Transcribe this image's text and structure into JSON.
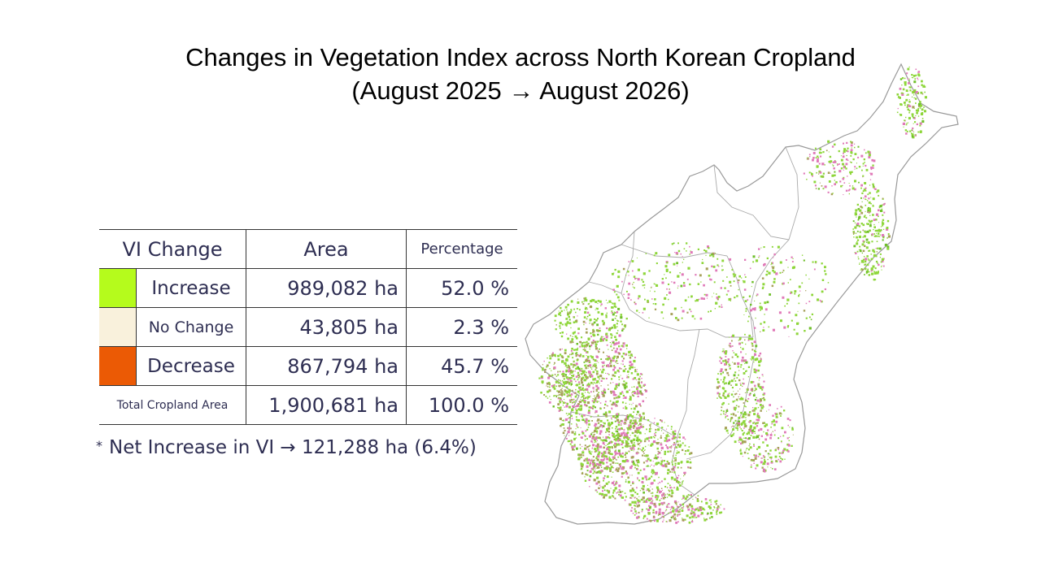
{
  "slide": {
    "title_line1": "Changes in Vegetation Index across North Korean Cropland",
    "title_line2": "(August 2025 → August 2026)"
  },
  "table": {
    "headers": {
      "category": "VI Change",
      "area": "Area",
      "percentage": "Percentage"
    },
    "rows": [
      {
        "label": "Increase",
        "area": "989,082 ha",
        "percentage": "52.0 %",
        "color": "#b5fb1c"
      },
      {
        "label": "No Change",
        "area": "43,805 ha",
        "percentage": "2.3 %",
        "color": "#f9f1dc"
      },
      {
        "label": "Decrease",
        "area": "867,794 ha",
        "percentage": "45.7 %",
        "color": "#eb5a05"
      }
    ],
    "total": {
      "label": "Total Cropland Area",
      "area": "1,900,681 ha",
      "percentage": "100.0 %"
    }
  },
  "footnote": {
    "marker": "*",
    "text": "Net Increase in VI → 121,288 ha (6.4%)"
  },
  "map": {
    "increase_color": "#8ed63a",
    "decrease_color": "#e07ab8",
    "mixed_color": "#a7a05a",
    "boundary_color": "#999999"
  }
}
